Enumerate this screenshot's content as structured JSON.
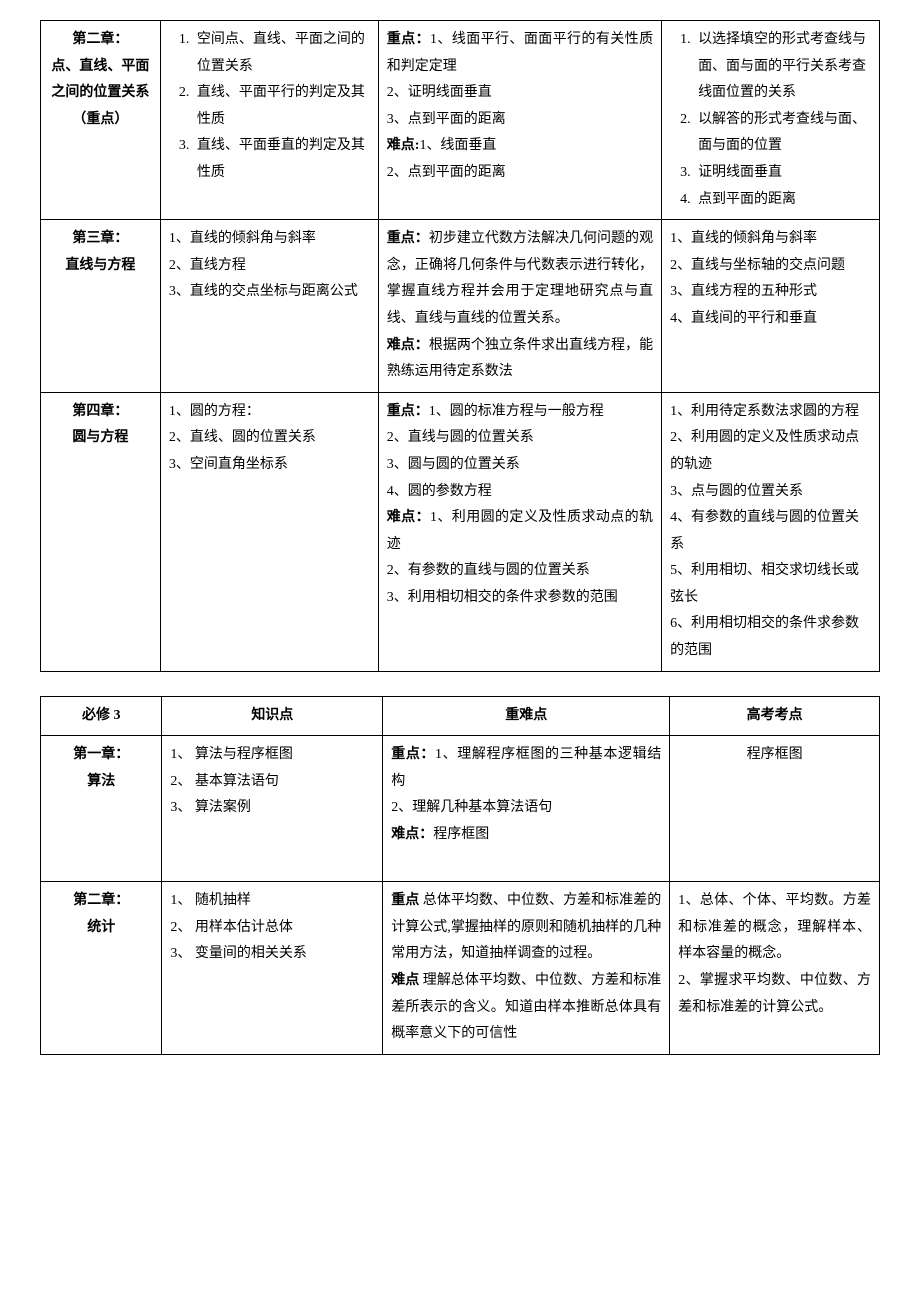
{
  "table1": {
    "rows": [
      {
        "chapter": "第二章：\n点、直线、平面之间的位置关系（重点）",
        "knowledge_items": [
          "空间点、直线、平面之间的位置关系",
          "直线、平面平行的判定及其性质",
          "直线、平面垂直的判定及其性质"
        ],
        "focus_label": "重点：",
        "focus_lines": [
          "1、线面平行、面面平行的有关性质和判定定理",
          "2、证明线面垂直",
          "3、点到平面的距离"
        ],
        "hard_label": "难点:",
        "hard_lines": [
          "1、线面垂直",
          "2、点到平面的距离"
        ],
        "exam_items": [
          "以选择填空的形式考查线与面、面与面的平行关系考查线面位置的关系",
          "以解答的形式考查线与面、面与面的位置",
          "证明线面垂直",
          "点到平面的距离"
        ]
      },
      {
        "chapter": "第三章：\n直线与方程",
        "knowledge_lines": [
          "1、直线的倾斜角与斜率",
          "2、直线方程",
          "3、直线的交点坐标与距离公式"
        ],
        "focus_label": "重点：",
        "focus_text": "初步建立代数方法解决几何问题的观念，正确将几何条件与代数表示进行转化，掌握直线方程并会用于定理地研究点与直线、直线与直线的位置关系。",
        "hard_label": "难点：",
        "hard_text": "根据两个独立条件求出直线方程，能熟练运用待定系数法",
        "exam_lines": [
          "1、直线的倾斜角与斜率",
          "2、直线与坐标轴的交点问题",
          "3、直线方程的五种形式",
          "4、直线间的平行和垂直"
        ]
      },
      {
        "chapter": "第四章：\n圆与方程",
        "knowledge_lines": [
          "1、圆的方程：",
          "2、直线、圆的位置关系",
          "3、空间直角坐标系"
        ],
        "focus_label": "重点：",
        "focus_lines": [
          "1、圆的标准方程与一般方程",
          "2、直线与圆的位置关系",
          "3、圆与圆的位置关系",
          "4、圆的参数方程"
        ],
        "hard_label": "难点：",
        "hard_lines": [
          "1、利用圆的定义及性质求动点的轨迹",
          "2、有参数的直线与圆的位置关系",
          "3、利用相切相交的条件求参数的范围"
        ],
        "exam_lines": [
          "1、利用待定系数法求圆的方程",
          "2、利用圆的定义及性质求动点的轨迹",
          "3、点与圆的位置关系",
          "4、有参数的直线与圆的位置关系",
          "5、利用相切、相交求切线长或弦长",
          "6、利用相切相交的条件求参数的范围"
        ]
      }
    ]
  },
  "table2": {
    "headers": [
      "必修 3",
      "知识点",
      "重难点",
      "高考考点"
    ],
    "rows": [
      {
        "chapter": "第一章：\n算法",
        "knowledge_lines": [
          "1、 算法与程序框图",
          "2、 基本算法语句",
          "3、 算法案例"
        ],
        "focus_label": "重点：",
        "focus_lines": [
          "1、理解程序框图的三种基本逻辑结构",
          "2、理解几种基本算法语句"
        ],
        "hard_label": "难点：",
        "hard_text": "程序框图",
        "exam_text": "程序框图"
      },
      {
        "chapter": "第二章：\n统计",
        "knowledge_lines": [
          "1、 随机抽样",
          "2、 用样本估计总体",
          "3、 变量间的相关关系"
        ],
        "focus_label": "重点",
        "focus_text": " 总体平均数、中位数、方差和标准差的计算公式,掌握抽样的原则和随机抽样的几种常用方法，知道抽样调查的过程。",
        "hard_label": "难点",
        "hard_text": " 理解总体平均数、中位数、方差和标准差所表示的含义。知道由样本推断总体具有概率意义下的可信性",
        "exam_text": "1、总体、个体、平均数。方差和标准差的概念，理解样本、样本容量的概念。\n2、掌握求平均数、中位数、方差和标准差的计算公式。"
      }
    ]
  }
}
